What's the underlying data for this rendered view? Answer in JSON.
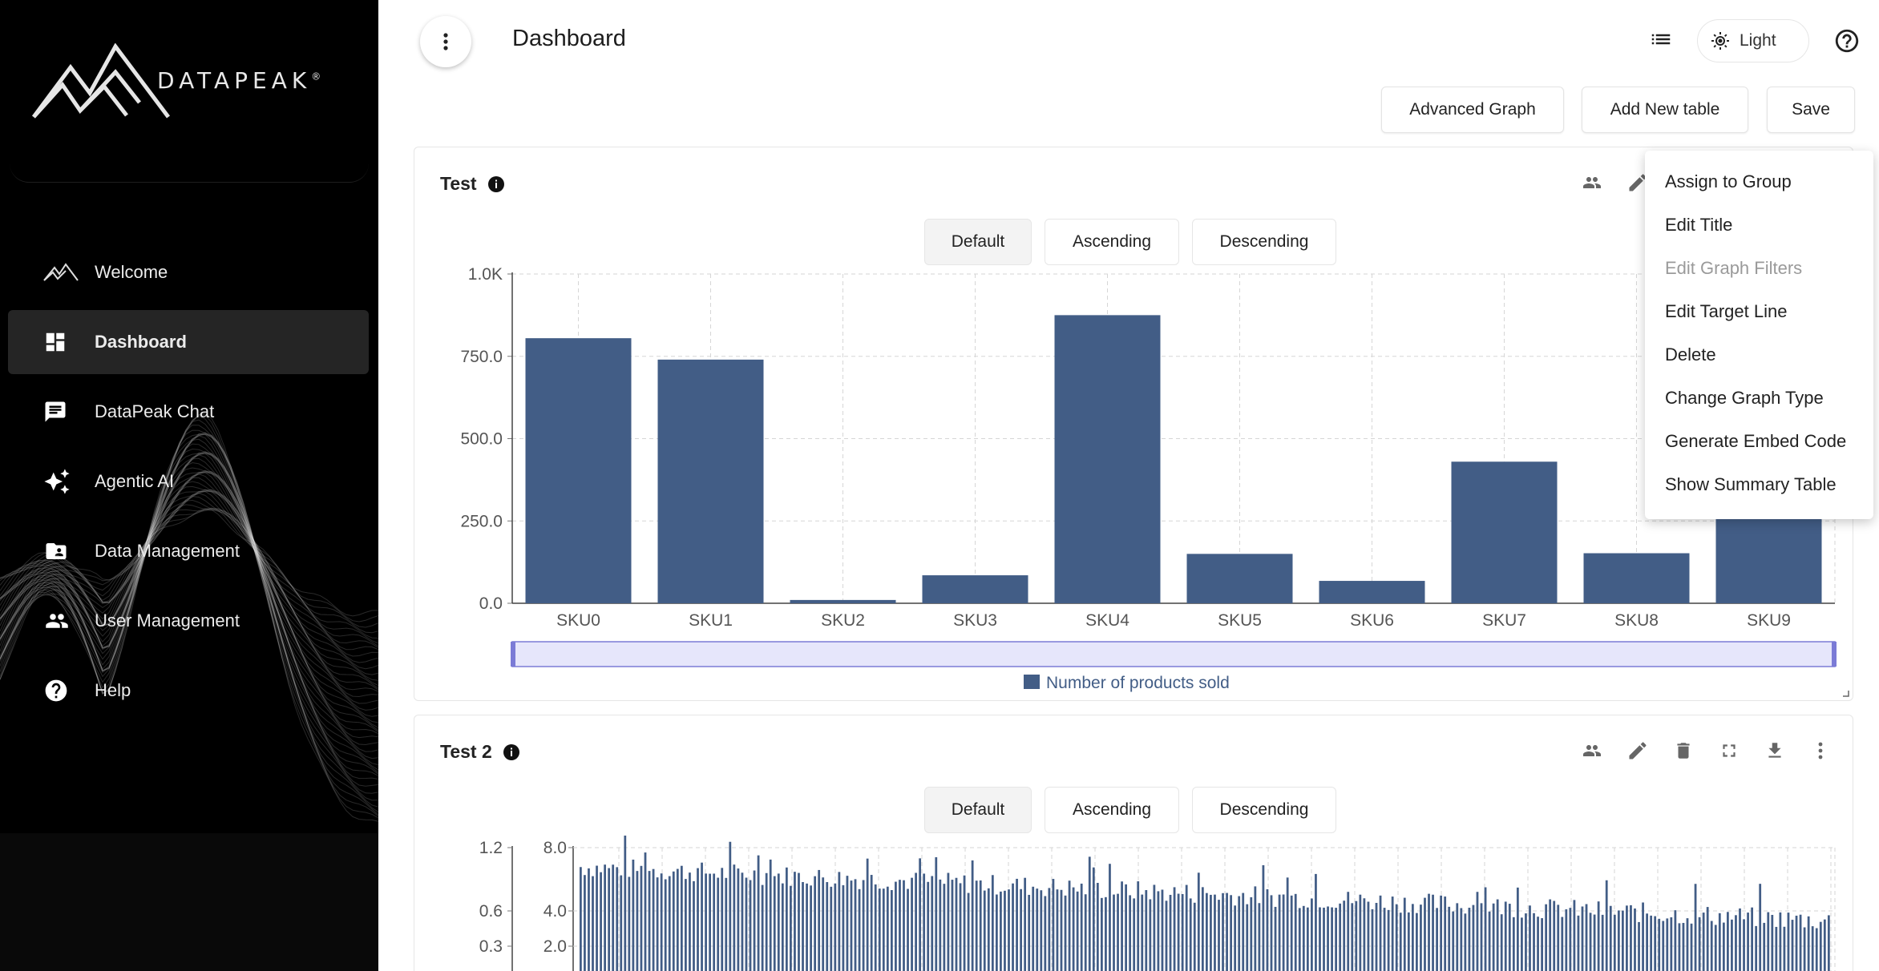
{
  "brand": {
    "name": "DATAPEAK",
    "mark": "®"
  },
  "nav": {
    "items": [
      {
        "label": "Welcome",
        "icon": "mountain-icon",
        "active": false
      },
      {
        "label": "Dashboard",
        "icon": "dashboard-icon",
        "active": true
      },
      {
        "label": "DataPeak Chat",
        "icon": "chat-icon",
        "active": false
      },
      {
        "label": "Agentic AI",
        "icon": "sparkle-icon",
        "active": false
      },
      {
        "label": "Data Management",
        "icon": "folder-user-icon",
        "active": false
      },
      {
        "label": "User Management",
        "icon": "people-icon",
        "active": false
      },
      {
        "label": "Help",
        "icon": "help-circle-icon",
        "active": false
      }
    ]
  },
  "header": {
    "title": "Dashboard",
    "theme_label": "Light"
  },
  "toolbar": {
    "advanced_graph": "Advanced Graph",
    "add_table": "Add New table",
    "save": "Save"
  },
  "cards": [
    {
      "title": "Test",
      "sort": [
        "Default",
        "Ascending",
        "Descending"
      ],
      "active_sort": "Default"
    },
    {
      "title": "Test 2",
      "sort": [
        "Default",
        "Ascending",
        "Descending"
      ],
      "active_sort": "Default"
    }
  ],
  "menu": {
    "items": [
      {
        "label": "Assign to Group",
        "disabled": false
      },
      {
        "label": "Edit Title",
        "disabled": false
      },
      {
        "label": "Edit Graph Filters",
        "disabled": true
      },
      {
        "label": "Edit Target Line",
        "disabled": false
      },
      {
        "label": "Delete",
        "disabled": false
      },
      {
        "label": "Change Graph Type",
        "disabled": false
      },
      {
        "label": "Generate Embed Code",
        "disabled": false
      },
      {
        "label": "Show Summary Table",
        "disabled": false
      }
    ]
  },
  "colors": {
    "bar": "#425d86",
    "legend_text": "#425d86",
    "brush": "#e6e6fb",
    "brush_border": "#7b7bd6"
  },
  "chart_data": [
    {
      "type": "bar",
      "title": "Test",
      "categories": [
        "SKU0",
        "SKU1",
        "SKU2",
        "SKU3",
        "SKU4",
        "SKU5",
        "SKU6",
        "SKU7",
        "SKU8",
        "SKU9"
      ],
      "series": [
        {
          "name": "Number of products sold",
          "values": [
            805,
            740,
            10,
            85,
            875,
            150,
            68,
            430,
            152,
            930
          ]
        }
      ],
      "yticks": [
        "0.0",
        "250.0",
        "500.0",
        "750.0",
        "1.0K"
      ],
      "ylim": [
        0,
        1000
      ],
      "grid": true,
      "legend": "bottom"
    },
    {
      "type": "bar",
      "title": "Test 2",
      "left_yticks": [
        "0.3",
        "0.6",
        "1.2"
      ],
      "right_yticks": [
        "2.0",
        "4.0",
        "8.0"
      ],
      "grid": true
    }
  ]
}
